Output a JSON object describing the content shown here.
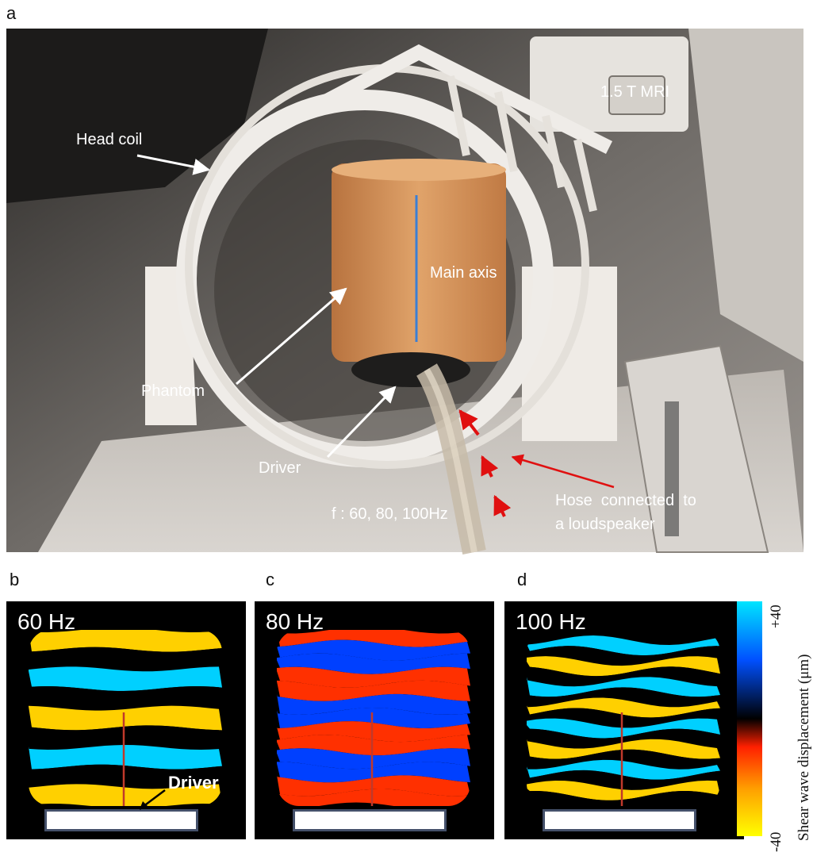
{
  "panels": {
    "a": "a",
    "b": "b",
    "c": "c",
    "d": "d"
  },
  "photo": {
    "labels": {
      "head_coil": "Head coil",
      "mri": "1.5 T MRI",
      "main_axis": "Main axis",
      "phantom": "Phantom",
      "driver": "Driver",
      "frequency": "f : 60, 80, 100Hz",
      "hose_line1": "Hose  connected  to",
      "hose_line2": "a loudspeaker"
    },
    "colors": {
      "annotation_arrow": "#ffffff",
      "hose_arrow": "#e01010",
      "main_axis_line": "#3a7fd5",
      "phantom": "#d9955a"
    }
  },
  "wave_panels": [
    {
      "freq_label": "60 Hz",
      "driver_label": "Driver"
    },
    {
      "freq_label": "80 Hz"
    },
    {
      "freq_label": "100 Hz"
    }
  ],
  "colorbar": {
    "max_label": "+40",
    "min_label": "-40",
    "title": "Shear wave displacement (μm)",
    "colors": [
      "#00e5ff",
      "#0050ff",
      "#000000",
      "#ff2000",
      "#ffa000",
      "#ffff00"
    ]
  }
}
